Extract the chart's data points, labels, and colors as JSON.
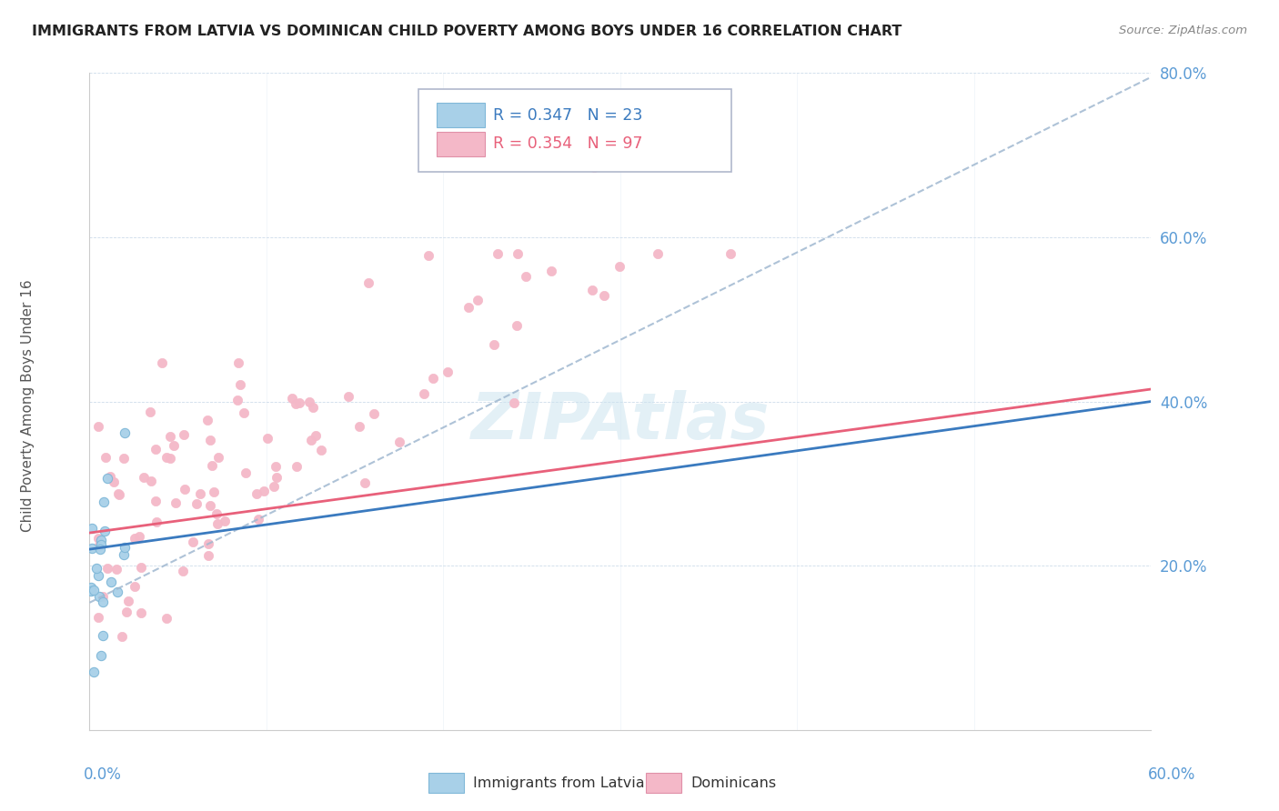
{
  "title": "IMMIGRANTS FROM LATVIA VS DOMINICAN CHILD POVERTY AMONG BOYS UNDER 16 CORRELATION CHART",
  "source": "Source: ZipAtlas.com",
  "ylabel": "Child Poverty Among Boys Under 16",
  "legend_label1": "Immigrants from Latvia",
  "legend_label2": "Dominicans",
  "R1": 0.347,
  "N1": 23,
  "R2": 0.354,
  "N2": 97,
  "color_latvia": "#a8d0e8",
  "color_dominican": "#f4b8c8",
  "color_latvia_line": "#3a7abf",
  "color_dominican_line": "#e8607a",
  "color_dashed_line": "#a0b8d0",
  "x_min": 0.0,
  "x_max": 0.6,
  "y_min": 0.0,
  "y_max": 0.8,
  "y_ticks": [
    0.0,
    0.2,
    0.4,
    0.6,
    0.8
  ],
  "y_tick_labels": [
    "",
    "20.0%",
    "40.0%",
    "60.0%",
    "80.0%"
  ],
  "x_tick_positions": [
    0.0,
    0.1,
    0.2,
    0.3,
    0.4,
    0.5,
    0.6
  ],
  "watermark_text": "ZIPAtlas",
  "seed": 12345
}
